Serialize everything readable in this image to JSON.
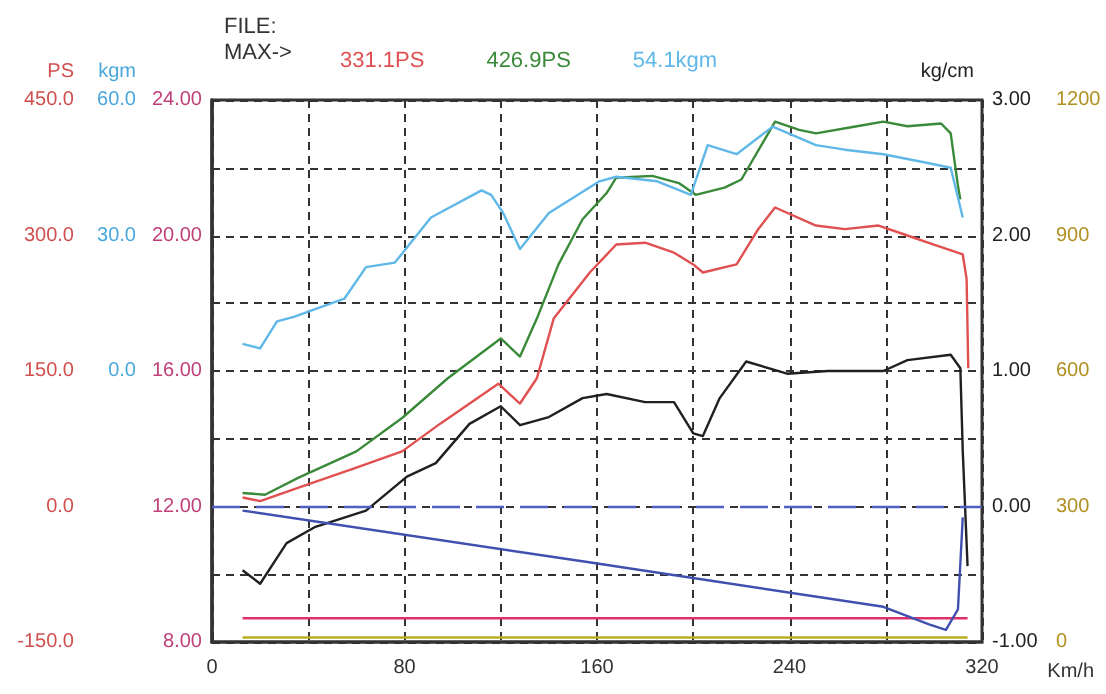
{
  "chart_data": [
    {
      "type": "line",
      "xlabel": "Km/h",
      "ylabel": "PS",
      "y2label": "kgm",
      "annotations": [
        "FILE:",
        "MAX->"
      ],
      "xlim": [
        0,
        320
      ],
      "xticks": [
        0,
        {
          "value": 40,
          "label": null
        },
        80,
        {
          "value": 120,
          "label": null
        },
        160,
        {
          "value": 200,
          "label": null
        },
        240,
        {
          "value": 280,
          "label": null
        },
        320
      ],
      "ylim": [
        -150,
        450
      ],
      "yticks": [
        {
          "value": -150,
          "label": "-150.0"
        },
        {
          "value": 0,
          "label": "0.0"
        },
        {
          "value": 150,
          "label": "150.0"
        },
        {
          "value": 300,
          "label": "300.0"
        },
        {
          "value": 450,
          "label": "450.0"
        }
      ],
      "y2lim": [
        -60,
        60
      ],
      "y2ticks": [
        {
          "value": 0,
          "label": "0.0"
        },
        {
          "value": 30,
          "label": "30.0"
        },
        {
          "value": 60,
          "label": "60.0"
        }
      ],
      "y3lim": [
        8,
        24
      ],
      "y3ticks": [
        {
          "value": 8,
          "label": "8.00"
        },
        {
          "value": 10,
          "label": null
        },
        {
          "value": 12,
          "label": "12.00"
        },
        {
          "value": 14,
          "label": null
        },
        {
          "value": 16,
          "label": "16.00"
        },
        {
          "value": 18,
          "label": null
        },
        {
          "value": 20,
          "label": "20.00"
        },
        {
          "value": 22,
          "label": null
        },
        {
          "value": 24,
          "label": "24.00"
        }
      ],
      "grid": true,
      "legend": "top",
      "marker": "none",
      "line_style": "solid",
      "series": [
        {
          "name": "331.1PS",
          "color": "#e05050",
          "x": [
            12.7,
            20,
            36,
            60,
            79,
            95,
            119,
            128,
            135,
            142,
            157,
            168,
            180,
            192,
            200,
            204,
            218,
            227,
            234,
            251,
            263,
            277,
            289,
            300,
            312,
            313.6,
            314.3
          ],
          "values": [
            10,
            6,
            21,
            43,
            61,
            92,
            136,
            114,
            142,
            208,
            259,
            290,
            292,
            281,
            268,
            259,
            268,
            307,
            331,
            311,
            307,
            311,
            300,
            290,
            279,
            252,
            153
          ]
        },
        {
          "name": "426.9PS",
          "color": "#3a8a3a",
          "x": [
            12.7,
            22,
            36,
            60,
            79,
            98,
            120,
            128,
            135,
            144,
            154,
            164,
            168,
            183,
            194,
            201,
            213,
            220,
            234,
            244,
            251,
            268,
            279,
            289,
            303,
            307,
            310,
            311
          ],
          "values": [
            15,
            13,
            32,
            61,
            98,
            142,
            186,
            166,
            208,
            268,
            318,
            347,
            364,
            366,
            358,
            345,
            353,
            362,
            426,
            417,
            413,
            421,
            426,
            421,
            424,
            413,
            355,
            340
          ]
        },
        {
          "name": "54.1kgm",
          "color": "#60b8e8",
          "axis": "y2",
          "x": [
            12.7,
            20,
            27,
            34,
            55,
            64,
            76,
            91,
            112,
            116,
            121,
            128,
            140,
            161,
            168,
            185,
            199,
            206,
            218,
            233,
            251,
            263,
            279,
            298,
            307,
            312
          ],
          "values": [
            6,
            5,
            11,
            12,
            16,
            23,
            24,
            34,
            40,
            39,
            35,
            27,
            35,
            42,
            43,
            42,
            39,
            50,
            48,
            54.1,
            50,
            49,
            48,
            46,
            45,
            34
          ]
        },
        {
          "color": "#e0306a",
          "axis": "y3",
          "x": [
            12.7,
            314
          ],
          "values": [
            8.7,
            8.7
          ]
        }
      ]
    },
    {
      "type": "line",
      "ylabel": "kg/cm",
      "tick_labels": "y",
      "xlim": [
        0,
        320
      ],
      "ylim": [
        -1,
        3
      ],
      "yticks": [
        {
          "value": -1,
          "label": "-1.00"
        },
        {
          "value": 0,
          "label": "0.00"
        },
        {
          "value": 1,
          "label": "1.00"
        },
        {
          "value": 2,
          "label": "2.00"
        },
        {
          "value": 3,
          "label": "3.00"
        }
      ],
      "y2lim": [
        0,
        1200
      ],
      "y2ticks": [
        0,
        300,
        600,
        900,
        1200
      ],
      "marker": "none",
      "line_style": "solid",
      "ref_lines": [
        {
          "axis": "y",
          "value": 0,
          "color": "#5060c0",
          "line_style": "dashed"
        }
      ],
      "series": [
        {
          "color": "#202020",
          "x": [
            12.7,
            20,
            31,
            43,
            64,
            81,
            93,
            107,
            120,
            128,
            140,
            154,
            164,
            180,
            192,
            200,
            204,
            211,
            222,
            239,
            256,
            279,
            289,
            307,
            311,
            312,
            314
          ],
          "values": [
            -0.47,
            -0.57,
            -0.27,
            -0.15,
            -0.03,
            0.22,
            0.32,
            0.61,
            0.74,
            0.6,
            0.66,
            0.8,
            0.83,
            0.77,
            0.77,
            0.54,
            0.52,
            0.8,
            1.07,
            0.98,
            1,
            1,
            1.08,
            1.12,
            1.02,
            0.41,
            -0.44
          ]
        },
        {
          "color": "#4050b0",
          "x": [
            12.7,
            156,
            279,
            298,
            305,
            310,
            312
          ],
          "values": [
            -0.03,
            -0.41,
            -0.74,
            -0.87,
            -0.91,
            -0.76,
            -0.08
          ]
        },
        {
          "color": "#b8b020",
          "axis": "y2",
          "x": [
            12.7,
            314
          ],
          "values": [
            10,
            10
          ]
        }
      ]
    }
  ]
}
